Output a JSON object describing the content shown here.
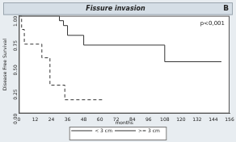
{
  "chart_data": {
    "type": "line",
    "title": "Fissure invasion",
    "annotations": [
      "B",
      "p<0,001"
    ],
    "x_label": "months",
    "y_label": "Disease Free Survival",
    "xlim": [
      0,
      156
    ],
    "xticks": [
      0,
      12,
      24,
      36,
      48,
      60,
      72,
      84,
      96,
      108,
      120,
      132,
      144,
      156
    ],
    "ylim": [
      0,
      1
    ],
    "yticks": [
      {
        "value": 0,
        "label": "0.00"
      },
      {
        "value": 0.25,
        "label": "0.25"
      },
      {
        "value": 0.5,
        "label": "0.50"
      },
      {
        "value": 0.75,
        "label": "0.75"
      },
      {
        "value": 1,
        "label": "1.00"
      }
    ],
    "grid": false,
    "legend": "bottom",
    "series": [
      {
        "name": "< 3 cm",
        "color": "#333333",
        "line_style": "solid",
        "x": [
          0,
          30,
          33,
          36,
          48,
          108,
          150
        ],
        "values": [
          1,
          0.95,
          0.9,
          0.8,
          0.7,
          0.53,
          0.53
        ]
      },
      {
        "name": ">= 3 cm",
        "color": "#333333",
        "line_style": "dashed",
        "x": [
          0,
          2,
          4,
          17,
          23,
          34,
          62
        ],
        "values": [
          1,
          0.86,
          0.71,
          0.57,
          0.29,
          0.14,
          0.14
        ]
      }
    ]
  }
}
